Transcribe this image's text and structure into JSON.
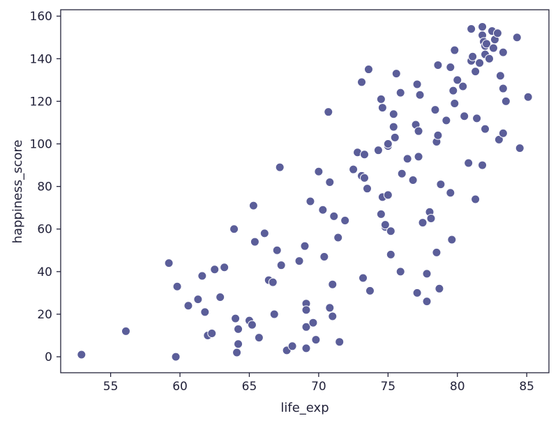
{
  "chart_data": {
    "type": "scatter",
    "xlabel": "life_exp",
    "ylabel": "happiness_score",
    "xlim": [
      51.4,
      86.6
    ],
    "ylim": [
      -7.5,
      163
    ],
    "xticks": [
      55,
      60,
      65,
      70,
      75,
      80,
      85
    ],
    "yticks": [
      0,
      20,
      40,
      60,
      80,
      100,
      120,
      140,
      160
    ],
    "grid": false,
    "marker_color": "#5b5e99",
    "points": [
      [
        52.9,
        1
      ],
      [
        56.1,
        12
      ],
      [
        59.2,
        44
      ],
      [
        59.8,
        33
      ],
      [
        59.7,
        0
      ],
      [
        60.6,
        24
      ],
      [
        61.3,
        27
      ],
      [
        61.6,
        38
      ],
      [
        61.8,
        21
      ],
      [
        62.0,
        10
      ],
      [
        62.3,
        11
      ],
      [
        62.5,
        41
      ],
      [
        62.9,
        28
      ],
      [
        63.2,
        42
      ],
      [
        63.9,
        60
      ],
      [
        64.0,
        18
      ],
      [
        64.1,
        2
      ],
      [
        64.2,
        13
      ],
      [
        64.2,
        6
      ],
      [
        65.0,
        17
      ],
      [
        65.2,
        15
      ],
      [
        65.3,
        71
      ],
      [
        65.4,
        54
      ],
      [
        65.7,
        9
      ],
      [
        66.1,
        58
      ],
      [
        66.4,
        36
      ],
      [
        66.7,
        35
      ],
      [
        66.8,
        20
      ],
      [
        67.0,
        50
      ],
      [
        67.2,
        89
      ],
      [
        67.3,
        43
      ],
      [
        67.7,
        3
      ],
      [
        68.1,
        5
      ],
      [
        68.6,
        45
      ],
      [
        69.0,
        52
      ],
      [
        69.1,
        25
      ],
      [
        69.1,
        22
      ],
      [
        69.1,
        14
      ],
      [
        69.1,
        4
      ],
      [
        69.4,
        73
      ],
      [
        69.6,
        16
      ],
      [
        69.8,
        8
      ],
      [
        70.0,
        87
      ],
      [
        70.3,
        69
      ],
      [
        70.4,
        47
      ],
      [
        70.7,
        115
      ],
      [
        70.8,
        23
      ],
      [
        70.8,
        82
      ],
      [
        71.0,
        34
      ],
      [
        71.0,
        19
      ],
      [
        71.1,
        66
      ],
      [
        71.4,
        56
      ],
      [
        71.5,
        7
      ],
      [
        71.9,
        64
      ],
      [
        72.5,
        88
      ],
      [
        72.8,
        96
      ],
      [
        73.1,
        85
      ],
      [
        73.1,
        129
      ],
      [
        73.2,
        37
      ],
      [
        73.3,
        84
      ],
      [
        73.3,
        95
      ],
      [
        73.5,
        79
      ],
      [
        73.6,
        135
      ],
      [
        73.7,
        31
      ],
      [
        74.3,
        97
      ],
      [
        74.5,
        67
      ],
      [
        74.5,
        121
      ],
      [
        74.6,
        75
      ],
      [
        74.6,
        117
      ],
      [
        74.8,
        61
      ],
      [
        74.8,
        62
      ],
      [
        75.0,
        99
      ],
      [
        75.0,
        100
      ],
      [
        75.0,
        76
      ],
      [
        75.2,
        48
      ],
      [
        75.2,
        59
      ],
      [
        75.4,
        114
      ],
      [
        75.4,
        108
      ],
      [
        75.5,
        103
      ],
      [
        75.6,
        133
      ],
      [
        75.9,
        124
      ],
      [
        75.9,
        40
      ],
      [
        76.0,
        86
      ],
      [
        76.4,
        93
      ],
      [
        76.8,
        83
      ],
      [
        77.0,
        109
      ],
      [
        77.1,
        30
      ],
      [
        77.1,
        128
      ],
      [
        77.2,
        94
      ],
      [
        77.2,
        106
      ],
      [
        77.3,
        123
      ],
      [
        77.5,
        63
      ],
      [
        77.8,
        39
      ],
      [
        77.8,
        26
      ],
      [
        78.0,
        68
      ],
      [
        78.1,
        65
      ],
      [
        78.4,
        116
      ],
      [
        78.5,
        49
      ],
      [
        78.5,
        101
      ],
      [
        78.6,
        104
      ],
      [
        78.6,
        137
      ],
      [
        78.7,
        32
      ],
      [
        78.8,
        81
      ],
      [
        79.2,
        111
      ],
      [
        79.5,
        77
      ],
      [
        79.5,
        136
      ],
      [
        79.6,
        55
      ],
      [
        79.7,
        125
      ],
      [
        79.8,
        119
      ],
      [
        79.8,
        144
      ],
      [
        80.0,
        130
      ],
      [
        80.4,
        127
      ],
      [
        80.5,
        113
      ],
      [
        80.8,
        91
      ],
      [
        81.0,
        154
      ],
      [
        81.0,
        139
      ],
      [
        81.1,
        141
      ],
      [
        81.3,
        74
      ],
      [
        81.3,
        134
      ],
      [
        81.4,
        112
      ],
      [
        81.6,
        138
      ],
      [
        81.8,
        90
      ],
      [
        81.8,
        155
      ],
      [
        81.8,
        151
      ],
      [
        81.9,
        148
      ],
      [
        82.0,
        107
      ],
      [
        82.0,
        142
      ],
      [
        82.0,
        146
      ],
      [
        82.1,
        147
      ],
      [
        82.3,
        140
      ],
      [
        82.5,
        153
      ],
      [
        82.6,
        145
      ],
      [
        82.7,
        149
      ],
      [
        82.9,
        152
      ],
      [
        83.0,
        102
      ],
      [
        83.1,
        132
      ],
      [
        83.3,
        105
      ],
      [
        83.3,
        143
      ],
      [
        83.3,
        126
      ],
      [
        83.5,
        120
      ],
      [
        84.3,
        150
      ],
      [
        84.5,
        98
      ],
      [
        85.1,
        122
      ]
    ]
  }
}
